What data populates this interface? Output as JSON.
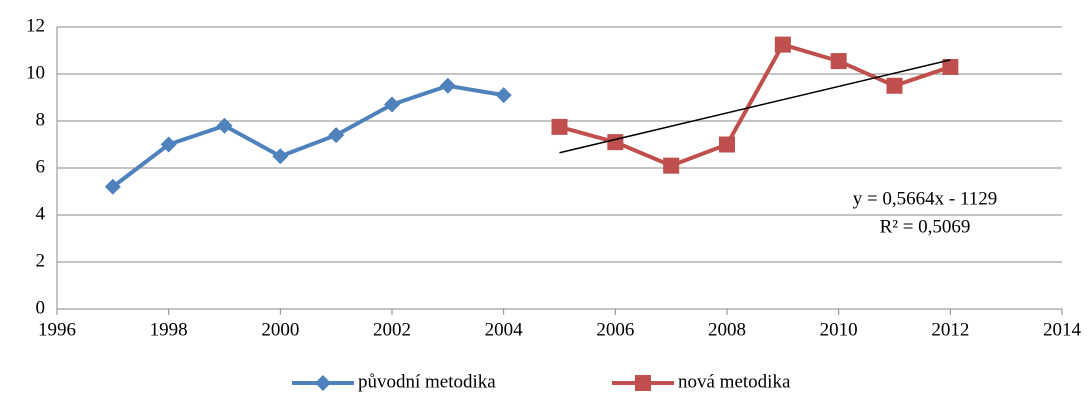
{
  "chart_data": {
    "type": "line",
    "series": [
      {
        "name": "původní metodika",
        "color": "#4f81bd",
        "marker": "diamond",
        "x": [
          1997,
          1998,
          1999,
          2000,
          2001,
          2002,
          2003,
          2004
        ],
        "values": [
          5.2,
          7.0,
          7.8,
          6.5,
          7.4,
          8.7,
          9.5,
          9.1
        ]
      },
      {
        "name": "nová metodika",
        "color": "#c0504d",
        "marker": "square",
        "x": [
          2005,
          2006,
          2007,
          2008,
          2009,
          2010,
          2011,
          2012
        ],
        "values": [
          7.75,
          7.1,
          6.1,
          7.0,
          11.25,
          10.55,
          9.5,
          10.3
        ]
      }
    ],
    "trendline": {
      "color": "#000000",
      "x": [
        2005,
        2012
      ],
      "values": [
        6.65,
        10.6
      ]
    },
    "annotations": [
      "y = 0,5664x - 1129",
      "R² = 0,5069"
    ],
    "xlim": [
      1996,
      2014
    ],
    "xticks": [
      1996,
      1998,
      2000,
      2002,
      2004,
      2006,
      2008,
      2010,
      2012,
      2014
    ],
    "ylim": [
      0,
      12
    ],
    "yticks": [
      0,
      2,
      4,
      6,
      8,
      10,
      12
    ],
    "grid": true,
    "legend": "bottom"
  }
}
